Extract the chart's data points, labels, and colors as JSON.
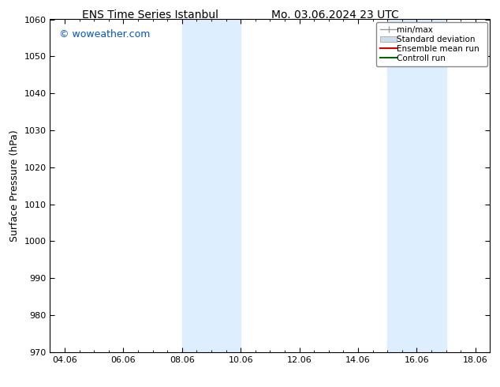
{
  "title_left": "ENS Time Series Istanbul",
  "title_right": "Mo. 03.06.2024 23 UTC",
  "ylabel": "Surface Pressure (hPa)",
  "ylim": [
    970,
    1060
  ],
  "yticks": [
    970,
    980,
    990,
    1000,
    1010,
    1020,
    1030,
    1040,
    1050,
    1060
  ],
  "xtick_labels": [
    "04.06",
    "06.06",
    "08.06",
    "10.06",
    "12.06",
    "14.06",
    "16.06",
    "18.06"
  ],
  "xtick_positions": [
    4,
    6,
    8,
    10,
    12,
    14,
    16,
    18
  ],
  "xlim": [
    3.5,
    18.5
  ],
  "shade_bands": [
    {
      "x_start": 8.0,
      "x_end": 10.0
    },
    {
      "x_start": 15.0,
      "x_end": 17.0
    }
  ],
  "shade_color": "#ddeeff",
  "bg_color": "#ffffff",
  "plot_bg_color": "#ffffff",
  "watermark": "© woweather.com",
  "watermark_color": "#0055cc",
  "legend_items": [
    {
      "label": "min/max",
      "color": "#999999",
      "lw": 1.0
    },
    {
      "label": "Standard deviation",
      "color": "#ccddee",
      "lw": 7
    },
    {
      "label": "Ensemble mean run",
      "color": "#dd0000",
      "lw": 1.5
    },
    {
      "label": "Controll run",
      "color": "#006600",
      "lw": 1.5
    }
  ],
  "title_fontsize": 10,
  "ylabel_fontsize": 9,
  "tick_fontsize": 8,
  "watermark_fontsize": 9,
  "legend_fontsize": 7.5
}
